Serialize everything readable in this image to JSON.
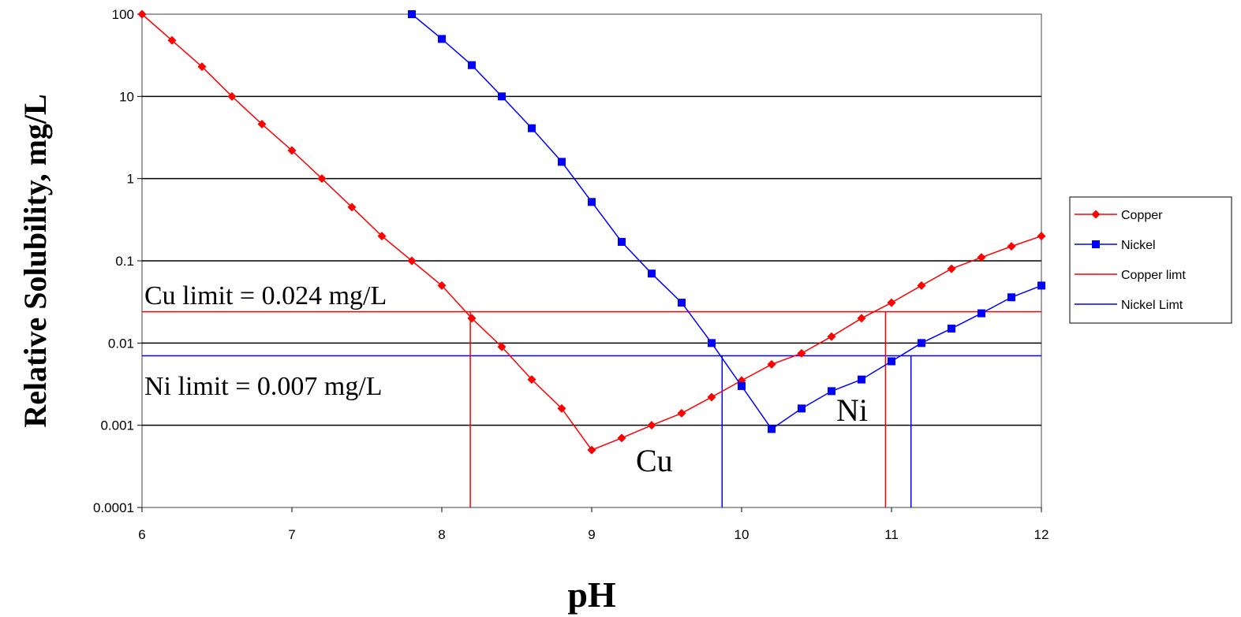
{
  "chart_data": {
    "type": "line",
    "title": "",
    "xlabel": "pH",
    "ylabel": "Relative Solubility, mg/L",
    "xlim": [
      6,
      12
    ],
    "ylim": [
      0.0001,
      100
    ],
    "yscale": "log",
    "grid": "horizontal",
    "legend_position": "right",
    "x_ticks": [
      "6",
      "7",
      "8",
      "9",
      "10",
      "11",
      "12"
    ],
    "y_ticks": [
      "100",
      "10",
      "1",
      "0.1",
      "0.01",
      "0.001",
      "0.0001"
    ],
    "y_tick_values": [
      100,
      10,
      1,
      0.1,
      0.01,
      0.001,
      0.0001
    ],
    "series": [
      {
        "name": "Copper",
        "color": "#ff0000",
        "marker": "diamond",
        "x": [
          6,
          6.2,
          6.4,
          6.6,
          6.8,
          7,
          7.2,
          7.4,
          7.6,
          7.8,
          8,
          8.2,
          8.4,
          8.6,
          8.8,
          9,
          9.2,
          9.4,
          9.6,
          9.8,
          10,
          10.2,
          10.4,
          10.6,
          10.8,
          11,
          11.2,
          11.4,
          11.6,
          11.8,
          12
        ],
        "y": [
          100,
          48,
          23,
          10,
          4.6,
          2.2,
          1.0,
          0.45,
          0.2,
          0.1,
          0.05,
          0.02,
          0.009,
          0.0036,
          0.0016,
          0.0005,
          0.0007,
          0.001,
          0.0014,
          0.0022,
          0.0035,
          0.0055,
          0.0075,
          0.012,
          0.02,
          0.031,
          0.05,
          0.08,
          0.11,
          0.15,
          0.2
        ]
      },
      {
        "name": "Nickel",
        "color": "#0000ff",
        "marker": "square",
        "x": [
          7.8,
          8,
          8.2,
          8.4,
          8.6,
          8.8,
          9,
          9.2,
          9.4,
          9.6,
          9.8,
          10,
          10.2,
          10.4,
          10.6,
          10.8,
          11,
          11.2,
          11.4,
          11.6,
          11.8,
          12
        ],
        "y": [
          100,
          50,
          24,
          10,
          4.1,
          1.6,
          0.52,
          0.17,
          0.07,
          0.031,
          0.01,
          0.003,
          0.0009,
          0.0016,
          0.0026,
          0.0036,
          0.006,
          0.01,
          0.015,
          0.023,
          0.036,
          0.05
        ]
      },
      {
        "name": "Copper limt",
        "color": "#ff0000",
        "marker": "none",
        "x": [
          6,
          12
        ],
        "y": [
          0.024,
          0.024
        ]
      },
      {
        "name": "Nickel Limt",
        "color": "#0000ff",
        "marker": "none",
        "x": [
          6,
          12
        ],
        "y": [
          0.007,
          0.007
        ]
      }
    ],
    "drop_lines": [
      {
        "x": 8.19,
        "y": 0.024,
        "color": "#ff0000"
      },
      {
        "x": 10.96,
        "y": 0.024,
        "color": "#ff0000"
      },
      {
        "x": 9.87,
        "y": 0.007,
        "color": "#0000ff"
      },
      {
        "x": 11.13,
        "y": 0.007,
        "color": "#0000ff"
      }
    ],
    "annotations": {
      "cu_limit": "Cu limit = 0.024 mg/L",
      "ni_limit": "Ni limit = 0.007 mg/L",
      "cu_label": "Cu",
      "ni_label": "Ni"
    }
  }
}
